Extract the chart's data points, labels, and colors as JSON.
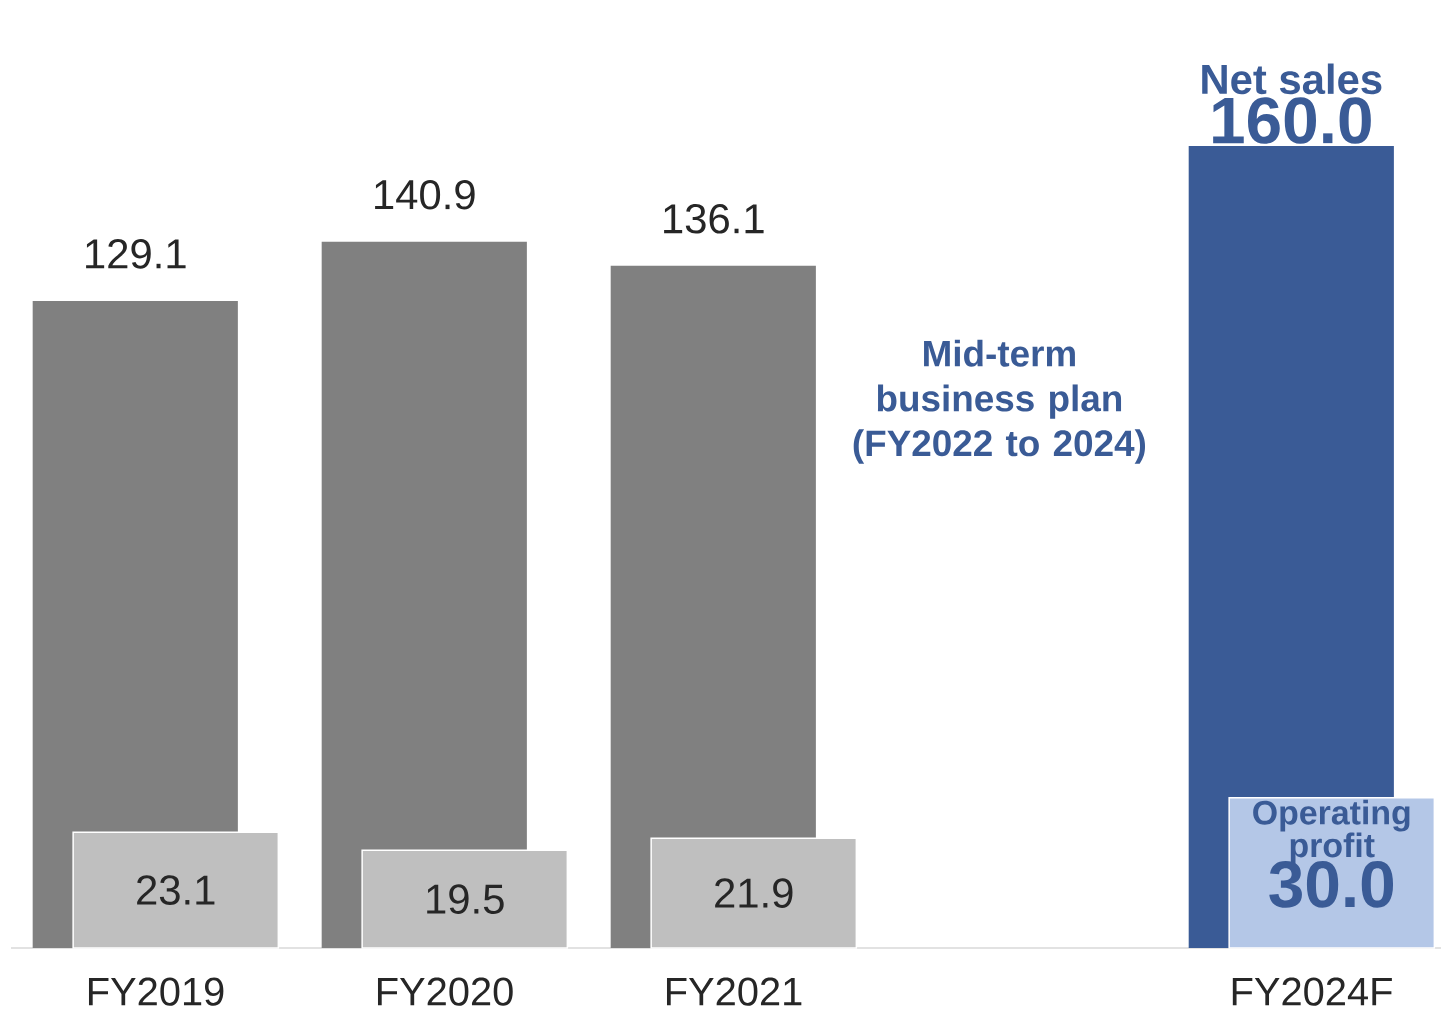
{
  "chart_data": {
    "type": "bar",
    "categories": [
      "FY2019",
      "FY2020",
      "FY2021",
      null,
      "FY2024F"
    ],
    "series": [
      {
        "name": "Net sales",
        "values": [
          129.1,
          140.9,
          136.1,
          null,
          160.0
        ],
        "colors": [
          "#808080",
          "#808080",
          "#808080",
          null,
          "#3a5b96"
        ],
        "value_labels": [
          "129.1",
          "140.9",
          "136.1",
          null,
          "160.0"
        ]
      },
      {
        "name": "Operating profit",
        "values": [
          23.1,
          19.5,
          21.9,
          null,
          30.0
        ],
        "colors": [
          "#bfbfbf",
          "#bfbfbf",
          "#bfbfbf",
          null,
          "#b4c7e7"
        ],
        "value_labels": [
          "23.1",
          "19.5",
          "21.9",
          null,
          "30.0"
        ]
      }
    ],
    "legend": false,
    "annotations": [
      "Mid-term business plan (FY2022 to 2024)"
    ]
  }
}
